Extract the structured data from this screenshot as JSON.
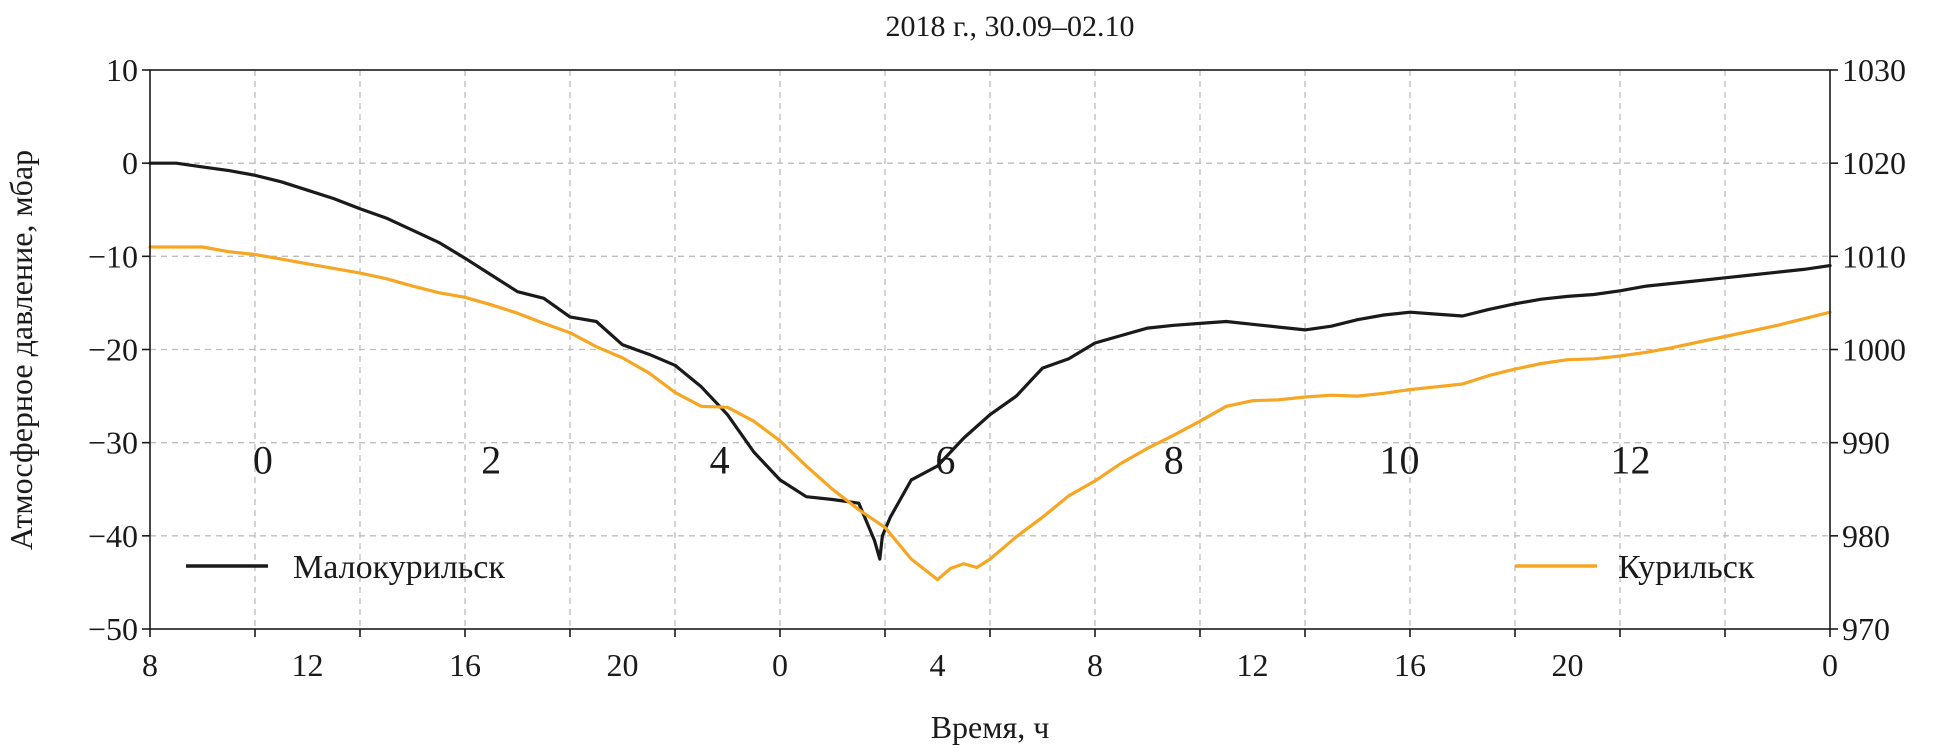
{
  "chart_data": {
    "type": "line",
    "title": "2018 г., 30.09–02.10",
    "xlabel": "Время, ч",
    "ylabel_left": "Атмосферное давление, мбар",
    "ylabel_right": "",
    "x_range_hours": [
      0,
      64
    ],
    "x_tick_hours": [
      0,
      4,
      8,
      12,
      16,
      20,
      24,
      28,
      32,
      36,
      40,
      44,
      48,
      52,
      56,
      60,
      64
    ],
    "x_tick_labels": [
      "8",
      "12",
      "16",
      "20",
      "0",
      "4",
      "8",
      "12",
      "16",
      "20",
      "0"
    ],
    "x_tick_label_hours": [
      0,
      6,
      12,
      18,
      24,
      30,
      36,
      42,
      48,
      54,
      64
    ],
    "ylim_left": [
      -50,
      10
    ],
    "yticks_left": [
      10,
      0,
      -10,
      -20,
      -30,
      -40,
      -50
    ],
    "ylim_right": [
      970,
      1030
    ],
    "yticks_right": [
      1030,
      1020,
      1010,
      1000,
      990,
      980,
      970
    ],
    "grid": true,
    "region_labels": [
      "0",
      "2",
      "4",
      "6",
      "8",
      "10",
      "12"
    ],
    "region_label_hours": [
      4.3,
      13,
      21.7,
      30.3,
      39,
      47.6,
      56.4
    ],
    "region_label_y": -32,
    "series": [
      {
        "name": "Малокурильск",
        "color": "#1a1a1a",
        "axis": "left",
        "x": [
          0,
          1,
          2,
          3,
          4,
          5,
          6,
          7,
          8,
          9,
          10,
          11,
          12,
          13,
          14,
          15,
          16,
          17,
          18,
          19,
          20,
          21,
          22,
          23,
          24,
          25,
          26,
          27,
          27.6,
          27.8,
          27.9,
          28.2,
          29,
          30,
          31,
          32,
          33,
          34,
          35,
          36,
          37,
          38,
          39,
          40,
          41,
          42,
          43,
          44,
          45,
          46,
          47,
          48,
          49,
          50,
          51,
          52,
          53,
          54,
          55,
          56,
          57,
          58,
          59,
          60,
          61,
          62,
          63,
          64
        ],
        "y": [
          0,
          0,
          -0.4,
          -0.8,
          -1.3,
          -2.0,
          -2.9,
          -3.8,
          -4.9,
          -5.9,
          -7.2,
          -8.5,
          -10.2,
          -12.0,
          -13.8,
          -14.5,
          -16.5,
          -17.0,
          -19.5,
          -20.5,
          -21.7,
          -24.0,
          -27.0,
          -31.0,
          -34.0,
          -35.8,
          -36.1,
          -36.5,
          -40.5,
          -42.5,
          -40.0,
          -38.0,
          -34.0,
          -32.5,
          -29.5,
          -27.0,
          -25.0,
          -22.0,
          -21.0,
          -19.3,
          -18.5,
          -17.7,
          -17.4,
          -17.2,
          -17.0,
          -17.3,
          -17.6,
          -17.9,
          -17.5,
          -16.8,
          -16.3,
          -16.0,
          -16.2,
          -16.4,
          -15.7,
          -15.1,
          -14.6,
          -14.3,
          -14.1,
          -13.7,
          -13.2,
          -12.9,
          -12.6,
          -12.3,
          -12.0,
          -11.7,
          -11.4,
          -11.0
        ]
      },
      {
        "name": "Курильск",
        "color": "#f6a623",
        "axis": "right",
        "x": [
          0,
          1,
          2,
          3,
          4,
          5,
          6,
          7,
          8,
          9,
          10,
          11,
          12,
          13,
          14,
          15,
          16,
          17,
          18,
          19,
          20,
          21,
          22,
          23,
          24,
          25,
          26,
          27,
          28,
          29,
          30,
          30.5,
          31,
          31.5,
          32,
          33,
          34,
          35,
          36,
          37,
          38,
          39,
          40,
          41,
          42,
          43,
          44,
          45,
          46,
          47,
          48,
          49,
          50,
          51,
          52,
          53,
          54,
          55,
          56,
          57,
          58,
          59,
          60,
          61,
          62,
          63,
          64
        ],
        "y": [
          1011,
          1011,
          1011,
          1010.5,
          1010.2,
          1009.7,
          1009.2,
          1008.7,
          1008.2,
          1007.6,
          1006.8,
          1006.1,
          1005.6,
          1004.8,
          1003.9,
          1002.8,
          1001.8,
          1000.3,
          999.1,
          997.5,
          995.4,
          993.9,
          993.8,
          992.3,
          990.2,
          987.5,
          985.0,
          982.8,
          980.9,
          977.5,
          975.3,
          976.5,
          977.0,
          976.6,
          977.5,
          979.9,
          982.0,
          984.3,
          985.9,
          987.8,
          989.4,
          990.8,
          992.3,
          993.9,
          994.5,
          994.6,
          994.9,
          995.1,
          995.0,
          995.3,
          995.7,
          996.0,
          996.3,
          997.2,
          997.9,
          998.5,
          998.9,
          999.0,
          999.3,
          999.7,
          1000.2,
          1000.8,
          1001.4,
          1002.0,
          1002.6,
          1003.3,
          1004.0
        ]
      }
    ],
    "legend": [
      {
        "label": "Малокурильск",
        "color": "#1a1a1a",
        "position": "lower-left"
      },
      {
        "label": "Курильск",
        "color": "#f6a623",
        "position": "lower-right"
      }
    ]
  }
}
